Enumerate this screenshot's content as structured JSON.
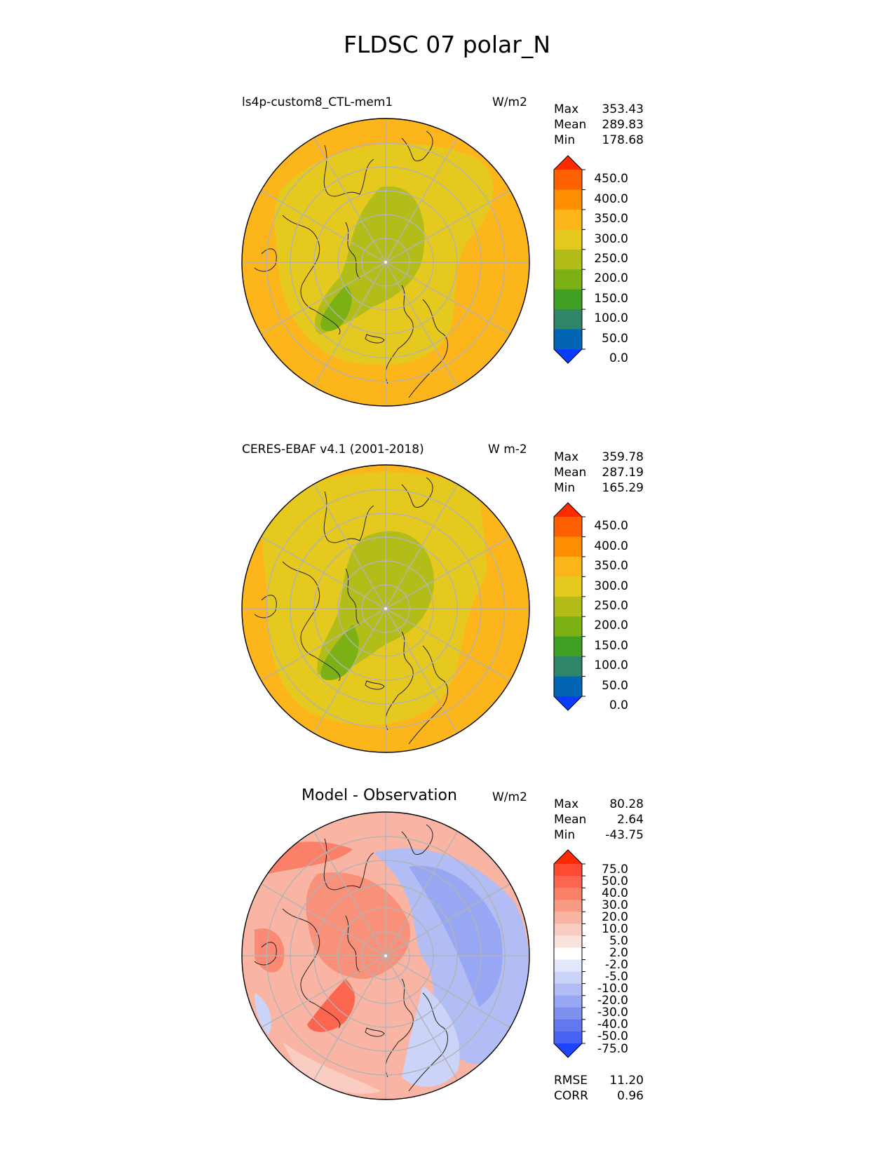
{
  "title": "FLDSC 07 polar_N",
  "panels": [
    {
      "label_left": "ls4p-custom8_CTL-mem1",
      "label_right": "W/m2",
      "stats": {
        "max_label": "Max",
        "max": "353.43",
        "mean_label": "Mean",
        "mean": "289.83",
        "min_label": "Min",
        "min": "178.68"
      },
      "colorbar": {
        "ticks": [
          "450.0",
          "400.0",
          "350.0",
          "300.0",
          "250.0",
          "200.0",
          "150.0",
          "100.0",
          "50.0",
          "0.0"
        ],
        "colors": [
          "#ff2a00",
          "#ff6000",
          "#ff8f00",
          "#fdb51c",
          "#e6c91f",
          "#b3bd1a",
          "#7cb116",
          "#40a024",
          "#2f8569",
          "#0066b3",
          "#0a3cff"
        ]
      }
    },
    {
      "label_left": "CERES-EBAF v4.1 (2001-2018)",
      "label_right": "W m-2",
      "stats": {
        "max_label": "Max",
        "max": "359.78",
        "mean_label": "Mean",
        "mean": "287.19",
        "min_label": "Min",
        "min": "165.29"
      },
      "colorbar": {
        "ticks": [
          "450.0",
          "400.0",
          "350.0",
          "300.0",
          "250.0",
          "200.0",
          "150.0",
          "100.0",
          "50.0",
          "0.0"
        ],
        "colors": [
          "#ff2a00",
          "#ff6000",
          "#ff8f00",
          "#fdb51c",
          "#e6c91f",
          "#b3bd1a",
          "#7cb116",
          "#40a024",
          "#2f8569",
          "#0066b3",
          "#0a3cff"
        ]
      }
    },
    {
      "title": "Model - Observation",
      "label_right": "W/m2",
      "stats": {
        "max_label": "Max",
        "max": "80.28",
        "mean_label": "Mean",
        "mean": "2.64",
        "min_label": "Min",
        "min": "-43.75"
      },
      "colorbar": {
        "ticks": [
          "75.0",
          "50.0",
          "40.0",
          "30.0",
          "20.0",
          "10.0",
          "5.0",
          "2.0",
          "-2.0",
          "-5.0",
          "-10.0",
          "-20.0",
          "-30.0",
          "-40.0",
          "-50.0",
          "-75.0"
        ],
        "colors": [
          "#ff2a00",
          "#fe4a32",
          "#fc6650",
          "#fa8068",
          "#f99a85",
          "#f9b4a4",
          "#facdc3",
          "#fbe3dd",
          "#ffffff",
          "#e3e7fb",
          "#cbd3f8",
          "#b2bdf5",
          "#98a7f3",
          "#7e91f0",
          "#6278ef",
          "#4761f0",
          "#1e44ff"
        ]
      },
      "summary": {
        "rmse_label": "RMSE",
        "rmse": "11.20",
        "corr_label": "CORR",
        "corr": "0.96"
      }
    }
  ]
}
